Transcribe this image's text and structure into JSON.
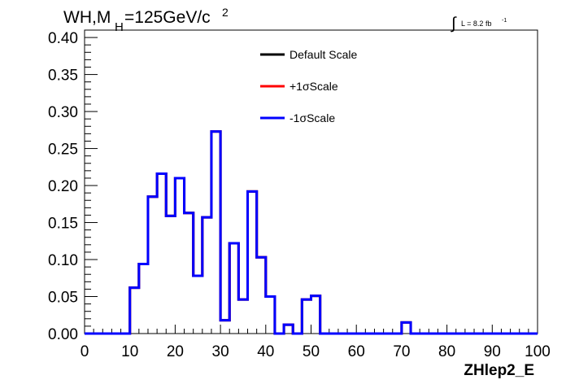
{
  "chart_data": {
    "type": "line",
    "title_main": "WH,M",
    "title_sub": "H",
    "title_rest": "=125GeV/c",
    "title_sup": "2",
    "lumi_symbol": "∫",
    "lumi_text": "L = 8.2 fb",
    "lumi_sup": "-1",
    "xlabel": "ZHlep2_E",
    "xlim": [
      0,
      100
    ],
    "ylim": [
      0,
      0.41
    ],
    "xticks": [
      0,
      10,
      20,
      30,
      40,
      50,
      60,
      70,
      80,
      90,
      100
    ],
    "xtick_labels": [
      "0",
      "10",
      "20",
      "30",
      "40",
      "50",
      "60",
      "70",
      "80",
      "90",
      "100"
    ],
    "yticks": [
      0,
      0.05,
      0.1,
      0.15,
      0.2,
      0.25,
      0.3,
      0.35,
      0.4
    ],
    "ytick_labels": [
      "0.00",
      "0.05",
      "0.10",
      "0.15",
      "0.20",
      "0.25",
      "0.30",
      "0.35",
      "0.40"
    ],
    "bin_edges": [
      0,
      2,
      4,
      6,
      8,
      10,
      12,
      14,
      16,
      18,
      20,
      22,
      24,
      26,
      28,
      30,
      32,
      34,
      36,
      38,
      40,
      42,
      44,
      46,
      48,
      50,
      52,
      54,
      56,
      58,
      60,
      62,
      64,
      66,
      68,
      70,
      72,
      74,
      76,
      78,
      80,
      82,
      84,
      86,
      88,
      90,
      92,
      94,
      96,
      98,
      100
    ],
    "legend": [
      {
        "label": "Default Scale",
        "color": "#000000"
      },
      {
        "label": "+1σScale",
        "color": "#ff0000"
      },
      {
        "label": "-1σScale",
        "color": "#0000ff"
      }
    ],
    "series": [
      {
        "name": "Default Scale",
        "color": "#000000",
        "values": [
          0,
          0,
          0,
          0,
          0,
          0.062,
          0.094,
          0.185,
          0.216,
          0.159,
          0.21,
          0.163,
          0.078,
          0.157,
          0.273,
          0.018,
          0.122,
          0.046,
          0.192,
          0.103,
          0.05,
          0,
          0.012,
          0,
          0.046,
          0.051,
          0,
          0,
          0,
          0,
          0,
          0,
          0,
          0,
          0,
          0.015,
          0,
          0,
          0,
          0,
          0,
          0,
          0,
          0,
          0,
          0,
          0,
          0,
          0,
          0
        ]
      },
      {
        "name": "+1σScale",
        "color": "#ff0000",
        "values": [
          0,
          0,
          0,
          0,
          0,
          0.062,
          0.094,
          0.185,
          0.216,
          0.159,
          0.21,
          0.163,
          0.078,
          0.157,
          0.273,
          0.018,
          0.122,
          0.046,
          0.192,
          0.103,
          0.05,
          0,
          0.012,
          0,
          0.046,
          0.051,
          0,
          0,
          0,
          0,
          0,
          0,
          0,
          0,
          0,
          0.015,
          0,
          0,
          0,
          0,
          0,
          0,
          0,
          0,
          0,
          0,
          0,
          0,
          0,
          0
        ]
      },
      {
        "name": "-1σScale",
        "color": "#0000ff",
        "values": [
          0,
          0,
          0,
          0,
          0,
          0.062,
          0.094,
          0.185,
          0.216,
          0.159,
          0.21,
          0.163,
          0.078,
          0.157,
          0.273,
          0.018,
          0.122,
          0.046,
          0.192,
          0.103,
          0.05,
          0,
          0.012,
          0,
          0.046,
          0.051,
          0,
          0,
          0,
          0,
          0,
          0,
          0,
          0,
          0,
          0.015,
          0,
          0,
          0,
          0,
          0,
          0,
          0,
          0,
          0,
          0,
          0,
          0,
          0,
          0
        ]
      }
    ]
  }
}
